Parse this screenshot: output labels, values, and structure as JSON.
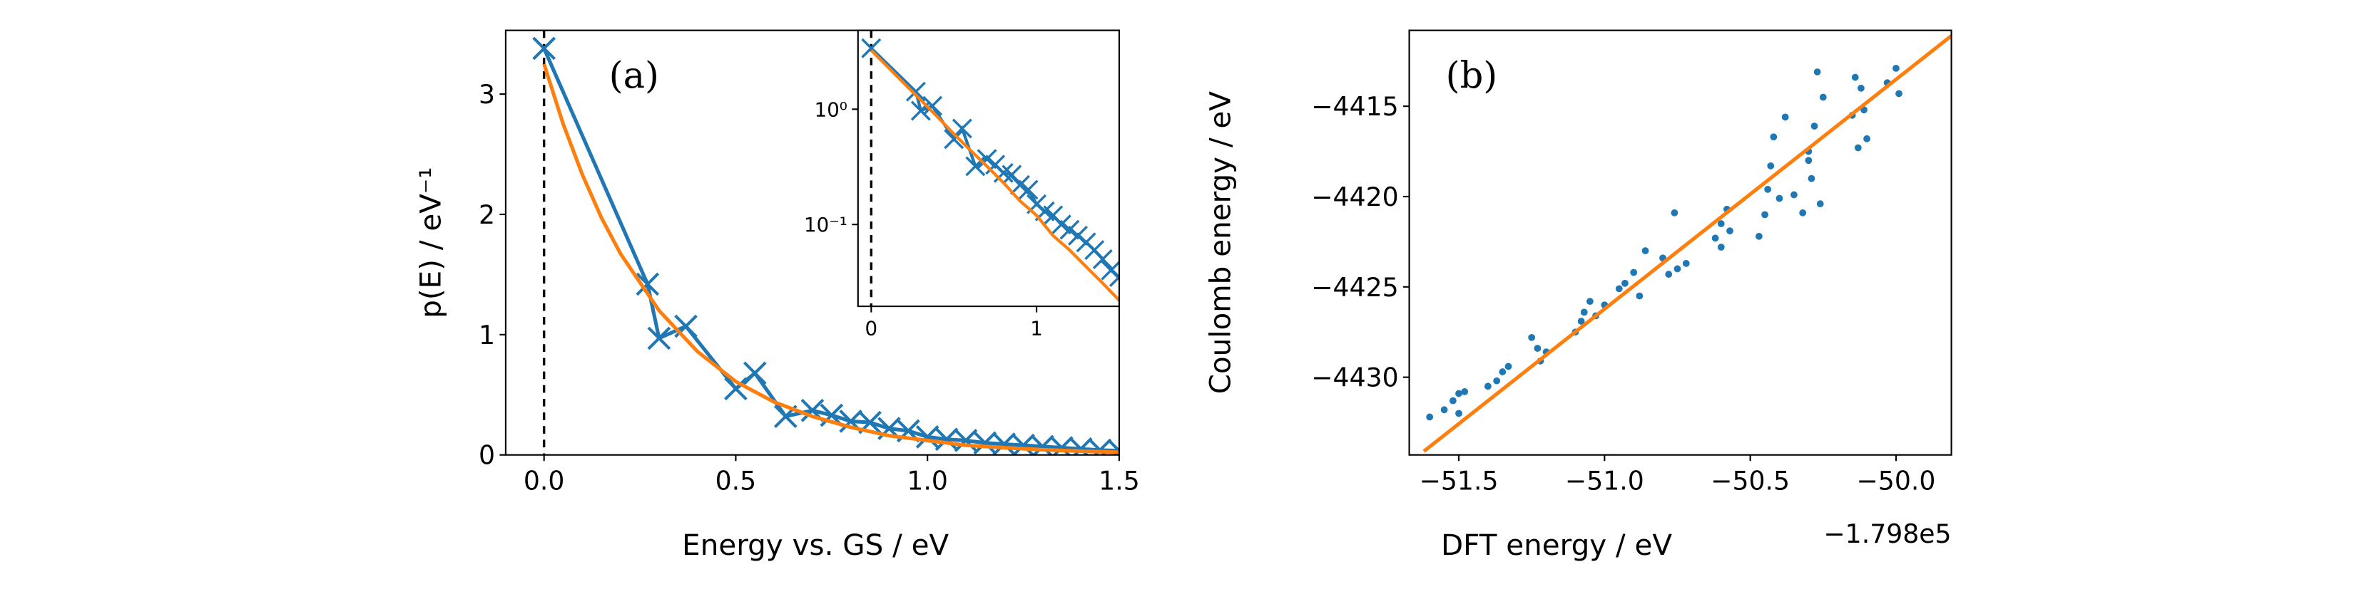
{
  "chart_data": [
    {
      "type": "line",
      "panel_label": "(a)",
      "x_label": "Energy vs. GS  / eV",
      "y_label": "p(E)  / eV⁻¹",
      "xlim": [
        -0.1,
        1.5
      ],
      "ylim": [
        0,
        3.53
      ],
      "xticks": [
        {
          "value": 0,
          "label": "0.0"
        },
        {
          "value": 0.5,
          "label": "0.5"
        },
        {
          "value": 1,
          "label": "1.0"
        },
        {
          "value": 1.5,
          "label": "1.5"
        }
      ],
      "yticks": [
        0,
        1,
        2,
        3
      ],
      "vline": 0,
      "series": [
        {
          "color": "#1f77b4",
          "marker": "x",
          "x": [
            0,
            0.27,
            0.3,
            0.37,
            0.5,
            0.55,
            0.63,
            0.7,
            0.75,
            0.8,
            0.85,
            0.9,
            0.95,
            1.0,
            1.05,
            1.1,
            1.15,
            1.2,
            1.25,
            1.3,
            1.35,
            1.4,
            1.45,
            1.5
          ],
          "values": [
            3.38,
            1.42,
            0.97,
            1.07,
            0.55,
            0.68,
            0.32,
            0.37,
            0.33,
            0.28,
            0.27,
            0.22,
            0.2,
            0.15,
            0.13,
            0.12,
            0.1,
            0.09,
            0.08,
            0.07,
            0.06,
            0.05,
            0.04,
            0.035
          ]
        },
        {
          "color": "#ff7f0e",
          "x": [
            0,
            0.05,
            0.1,
            0.15,
            0.2,
            0.3,
            0.4,
            0.5,
            0.6,
            0.7,
            0.8,
            0.9,
            1.0,
            1.1,
            1.2,
            1.3,
            1.4,
            1.5
          ],
          "values": [
            3.25,
            2.75,
            2.33,
            1.97,
            1.67,
            1.2,
            0.86,
            0.61,
            0.44,
            0.32,
            0.23,
            0.16,
            0.12,
            0.08,
            0.06,
            0.043,
            0.031,
            0.022
          ]
        }
      ],
      "inset": {
        "log_y": true,
        "xlim": [
          -0.08,
          1.5
        ],
        "ylim": [
          0.0195,
          4.83
        ],
        "xticks": [
          0,
          1
        ],
        "yticks": [
          {
            "value": 1,
            "label": "10⁰"
          },
          {
            "value": 0.1,
            "label": "10⁻¹"
          }
        ]
      }
    },
    {
      "type": "scatter",
      "panel_label": "(b)",
      "x_label": "DFT energy  / eV",
      "x_offset_label": "−1.798e5",
      "y_label": "Coulomb energy  / eV",
      "xlim": [
        -51.67,
        -49.81
      ],
      "ylim": [
        -4434.3,
        -4410.8
      ],
      "xticks": [
        {
          "value": -51.5,
          "label": "−51.5"
        },
        {
          "value": -51,
          "label": "−51.0"
        },
        {
          "value": -50.5,
          "label": "−50.5"
        },
        {
          "value": -50,
          "label": "−50.0"
        }
      ],
      "yticks": [
        {
          "value": -4415,
          "label": "−4415"
        },
        {
          "value": -4420,
          "label": "−4420"
        },
        {
          "value": -4425,
          "label": "−4425"
        },
        {
          "value": -4430,
          "label": "−4430"
        }
      ],
      "series": [
        {
          "color": "#1f77b4",
          "x": [
            -51.6,
            -51.55,
            -51.52,
            -51.5,
            -51.48,
            -51.5,
            -51.4,
            -51.37,
            -51.35,
            -51.33,
            -51.25,
            -51.23,
            -51.22,
            -51.2,
            -51.1,
            -51.08,
            -51.07,
            -51.05,
            -51.03,
            -51.0,
            -50.95,
            -50.93,
            -50.9,
            -50.88,
            -50.86,
            -50.8,
            -50.78,
            -50.76,
            -50.75,
            -50.72,
            -50.62,
            -50.6,
            -50.58,
            -50.6,
            -50.57,
            -50.45,
            -50.43,
            -50.42,
            -50.4,
            -50.38,
            -50.47,
            -50.44,
            -50.32,
            -50.3,
            -50.28,
            -50.27,
            -50.26,
            -50.25,
            -50.3,
            -50.29,
            -50.15,
            -50.14,
            -50.12,
            -50.1,
            -50.13,
            -50.11,
            -50.03,
            -50.0,
            -49.99,
            -50.35
          ],
          "values": [
            -4432.2,
            -4431.8,
            -4431.3,
            -4430.9,
            -4430.8,
            -4432.0,
            -4430.5,
            -4430.2,
            -4429.7,
            -4429.4,
            -4427.8,
            -4428.4,
            -4429.1,
            -4428.6,
            -4427.5,
            -4426.9,
            -4426.4,
            -4425.8,
            -4426.6,
            -4426.0,
            -4425.1,
            -4424.8,
            -4424.2,
            -4425.5,
            -4423.0,
            -4423.4,
            -4424.3,
            -4420.9,
            -4424.0,
            -4423.7,
            -4422.3,
            -4421.5,
            -4420.7,
            -4422.8,
            -4421.9,
            -4421.0,
            -4418.3,
            -4416.7,
            -4420.1,
            -4415.6,
            -4422.2,
            -4419.6,
            -4420.9,
            -4418.0,
            -4416.1,
            -4413.1,
            -4420.4,
            -4414.5,
            -4417.5,
            -4419.0,
            -4415.5,
            -4413.4,
            -4414.0,
            -4416.8,
            -4417.3,
            -4415.2,
            -4413.7,
            -4412.9,
            -4414.3,
            -4419.9
          ]
        },
        {
          "color": "#ff7f0e",
          "line": true,
          "x": [
            -51.62,
            -49.81
          ],
          "values": [
            -4434.1,
            -4411.1
          ]
        }
      ]
    }
  ]
}
